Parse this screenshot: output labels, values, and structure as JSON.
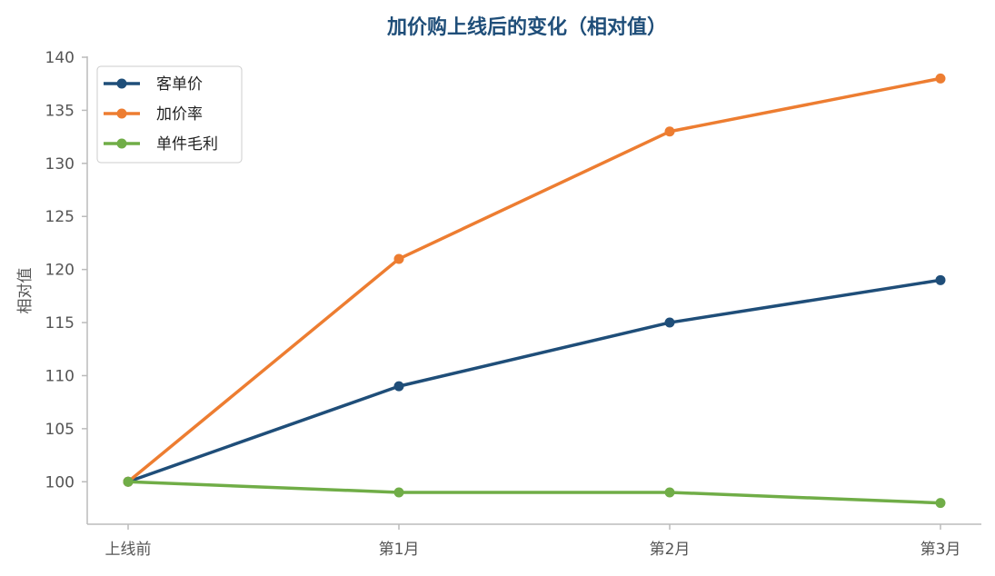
{
  "chart_data": {
    "type": "line",
    "title": "加价购上线后的变化（相对值）",
    "xlabel": "",
    "ylabel": "相对值",
    "categories": [
      "上线前",
      "第1月",
      "第2月",
      "第3月"
    ],
    "ylim": [
      96,
      140
    ],
    "yticks": [
      100,
      105,
      110,
      115,
      120,
      125,
      130,
      135,
      140
    ],
    "grid": false,
    "legend_position": "top-left",
    "series": [
      {
        "name": "客单价",
        "color": "#1f4e79",
        "values": [
          100,
          109,
          115,
          119
        ]
      },
      {
        "name": "加价率",
        "color": "#ed7d31",
        "values": [
          100,
          121,
          133,
          138
        ]
      },
      {
        "name": "单件毛利",
        "color": "#70ad47",
        "values": [
          100,
          99,
          99,
          98
        ]
      }
    ],
    "colors": {
      "title": "#1f4e79",
      "axis": "#bbbbbb",
      "tick_text": "#555555"
    }
  }
}
